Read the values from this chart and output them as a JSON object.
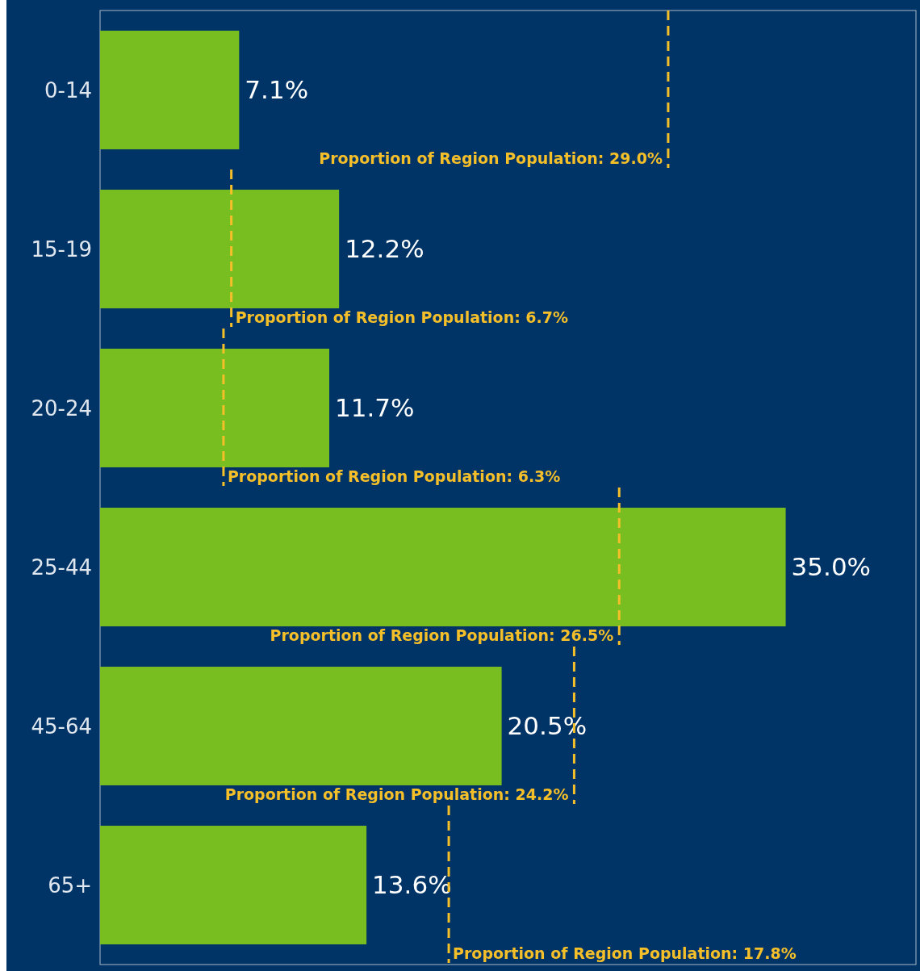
{
  "chart_data": {
    "type": "bar",
    "orientation": "horizontal",
    "categories": [
      "0-14",
      "15-19",
      "20-24",
      "25-44",
      "45-64",
      "65+"
    ],
    "values": [
      7.1,
      12.2,
      11.7,
      35.0,
      20.5,
      13.6
    ],
    "color": "#78be20",
    "value_labels": [
      "7.1%",
      "12.2%",
      "11.7%",
      "35.0%",
      "20.5%",
      "13.6%"
    ],
    "tick_labels": "y",
    "ref_lines": [
      {
        "axis": "x",
        "value": 29.0,
        "label": "Proportion of Region Population: 29.0%",
        "color": "#f5bf2a",
        "line_style": "dashed"
      },
      {
        "axis": "x",
        "value": 6.7,
        "label": "Proportion of Region Population: 6.7%",
        "color": "#f5bf2a",
        "line_style": "dashed"
      },
      {
        "axis": "x",
        "value": 6.3,
        "label": "Proportion of Region Population: 6.3%",
        "color": "#f5bf2a",
        "line_style": "dashed"
      },
      {
        "axis": "x",
        "value": 26.5,
        "label": "Proportion of Region Population: 26.5%",
        "color": "#f5bf2a",
        "line_style": "dashed"
      },
      {
        "axis": "x",
        "value": 24.2,
        "label": "Proportion of Region Population: 24.2%",
        "color": "#f5bf2a",
        "line_style": "dashed"
      },
      {
        "axis": "x",
        "value": 17.8,
        "label": "Proportion of Region Population: 17.8%",
        "color": "#f5bf2a",
        "line_style": "dashed"
      }
    ]
  }
}
